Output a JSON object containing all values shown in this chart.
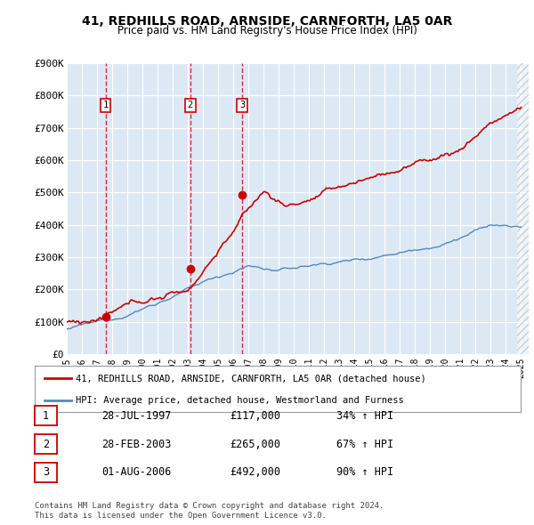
{
  "title": "41, REDHILLS ROAD, ARNSIDE, CARNFORTH, LA5 0AR",
  "subtitle": "Price paid vs. HM Land Registry's House Price Index (HPI)",
  "ylim": [
    0,
    900000
  ],
  "yticks": [
    0,
    100000,
    200000,
    300000,
    400000,
    500000,
    600000,
    700000,
    800000,
    900000
  ],
  "ytick_labels": [
    "£0",
    "£100K",
    "£200K",
    "£300K",
    "£400K",
    "£500K",
    "£600K",
    "£700K",
    "£800K",
    "£900K"
  ],
  "sales": [
    {
      "date_num": 1997.57,
      "price": 117000,
      "label": "1"
    },
    {
      "date_num": 2003.16,
      "price": 265000,
      "label": "2"
    },
    {
      "date_num": 2006.58,
      "price": 492000,
      "label": "3"
    }
  ],
  "sale_color": "#cc0000",
  "hpi_color": "#5588bb",
  "legend_sale_label": "41, REDHILLS ROAD, ARNSIDE, CARNFORTH, LA5 0AR (detached house)",
  "legend_hpi_label": "HPI: Average price, detached house, Westmorland and Furness",
  "table": [
    {
      "num": "1",
      "date": "28-JUL-1997",
      "price": "£117,000",
      "hpi": "34% ↑ HPI"
    },
    {
      "num": "2",
      "date": "28-FEB-2003",
      "price": "£265,000",
      "hpi": "67% ↑ HPI"
    },
    {
      "num": "3",
      "date": "01-AUG-2006",
      "price": "£492,000",
      "hpi": "90% ↑ HPI"
    }
  ],
  "footer": [
    "Contains HM Land Registry data © Crown copyright and database right 2024.",
    "This data is licensed under the Open Government Licence v3.0."
  ],
  "background_color": "#ffffff",
  "plot_bg_color": "#dce9f5",
  "grid_color": "#ffffff",
  "x_start": 1995.0,
  "x_end": 2025.5,
  "hatch_start": 2024.75,
  "xtick_years": [
    1995,
    1996,
    1997,
    1998,
    1999,
    2000,
    2001,
    2002,
    2003,
    2004,
    2005,
    2006,
    2007,
    2008,
    2009,
    2010,
    2011,
    2012,
    2013,
    2014,
    2015,
    2016,
    2017,
    2018,
    2019,
    2020,
    2021,
    2022,
    2023,
    2024,
    2025
  ]
}
